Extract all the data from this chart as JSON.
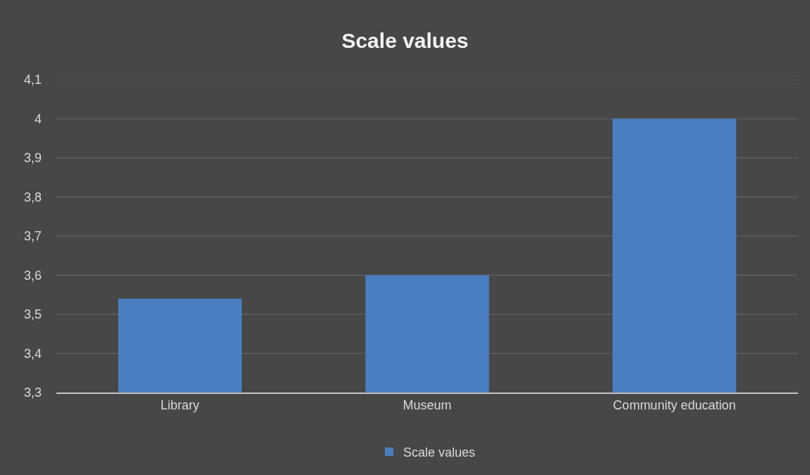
{
  "chart_data": {
    "type": "bar",
    "title": "Scale values",
    "categories": [
      "Library",
      "Museum",
      "Community education"
    ],
    "series": [
      {
        "name": "Scale values",
        "color": "#4a7ec0",
        "values": [
          3.54,
          3.6,
          4.0
        ]
      }
    ],
    "ylim": [
      3.3,
      4.1
    ],
    "yticks": [
      {
        "value": 3.3,
        "label": "3,3"
      },
      {
        "value": 3.4,
        "label": "3,4"
      },
      {
        "value": 3.5,
        "label": "3,5"
      },
      {
        "value": 3.6,
        "label": "3,6"
      },
      {
        "value": 3.7,
        "label": "3,7"
      },
      {
        "value": 3.8,
        "label": "3,8"
      },
      {
        "value": 3.9,
        "label": "3,9"
      },
      4,
      {
        "value": 4.1,
        "label": "4,1"
      }
    ],
    "grid": "y",
    "legend": "bottom"
  }
}
